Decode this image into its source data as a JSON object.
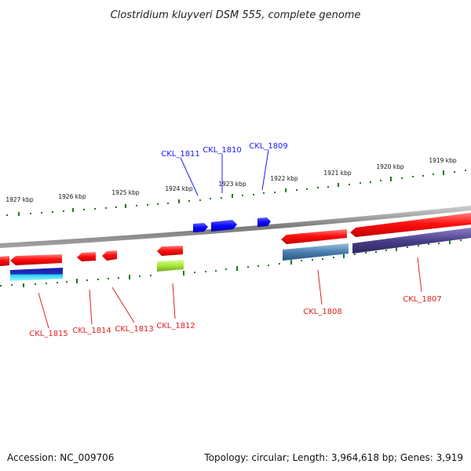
{
  "title": "Clostridium kluyveri DSM 555, complete genome",
  "footer": {
    "accession": "Accession: NC_009706",
    "summary": "Topology: circular; Length: 3,964,618 bp; Genes: 3,919"
  },
  "colors": {
    "backbone": "#8a8a8a",
    "ticks": "#1e7a1e",
    "label_top": "#1a1aff",
    "label_bottom": "#dd2222",
    "red": "#ff1a1a",
    "blue": "#1010ff",
    "steelblue": "#4a7fb0",
    "navy": "#1a1aa8",
    "cyan": "#22e6f0",
    "slate": "#4a3f8a",
    "lime": "#a6e639"
  },
  "axis_ticks_kbp": [
    "1927 kbp",
    "1926 kbp",
    "1925 kbp",
    "1924 kbp",
    "1923 kbp",
    "1922 kbp",
    "1921 kbp",
    "1920 kbp",
    "1919 kbp"
  ],
  "top_labels": [
    "CKL_1811",
    "CKL_1810",
    "CKL_1809"
  ],
  "bottom_labels": [
    "CKL_1815",
    "CKL_1814",
    "CKL_1813",
    "CKL_1812",
    "CKL_1808",
    "CKL_1807"
  ]
}
